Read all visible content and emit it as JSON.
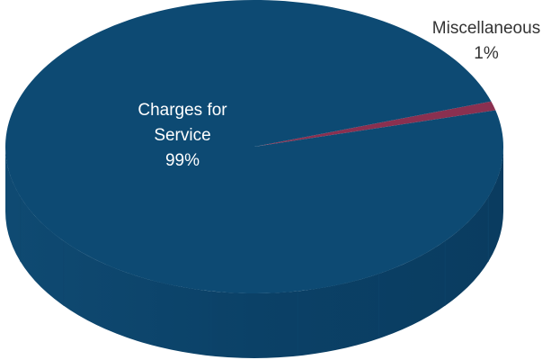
{
  "chart_data": {
    "type": "pie",
    "title": "",
    "slices": [
      {
        "label_lines": [
          "Charges for",
          "Service"
        ],
        "value": 99,
        "value_label": "99%",
        "color": "#0d4a73",
        "label_color": "#ffffff"
      },
      {
        "label_lines": [
          "Miscellaneous"
        ],
        "value": 1,
        "value_label": "1%",
        "color": "#8a3050",
        "label_color": "#333333"
      }
    ],
    "style": "3d",
    "legend": "none"
  }
}
